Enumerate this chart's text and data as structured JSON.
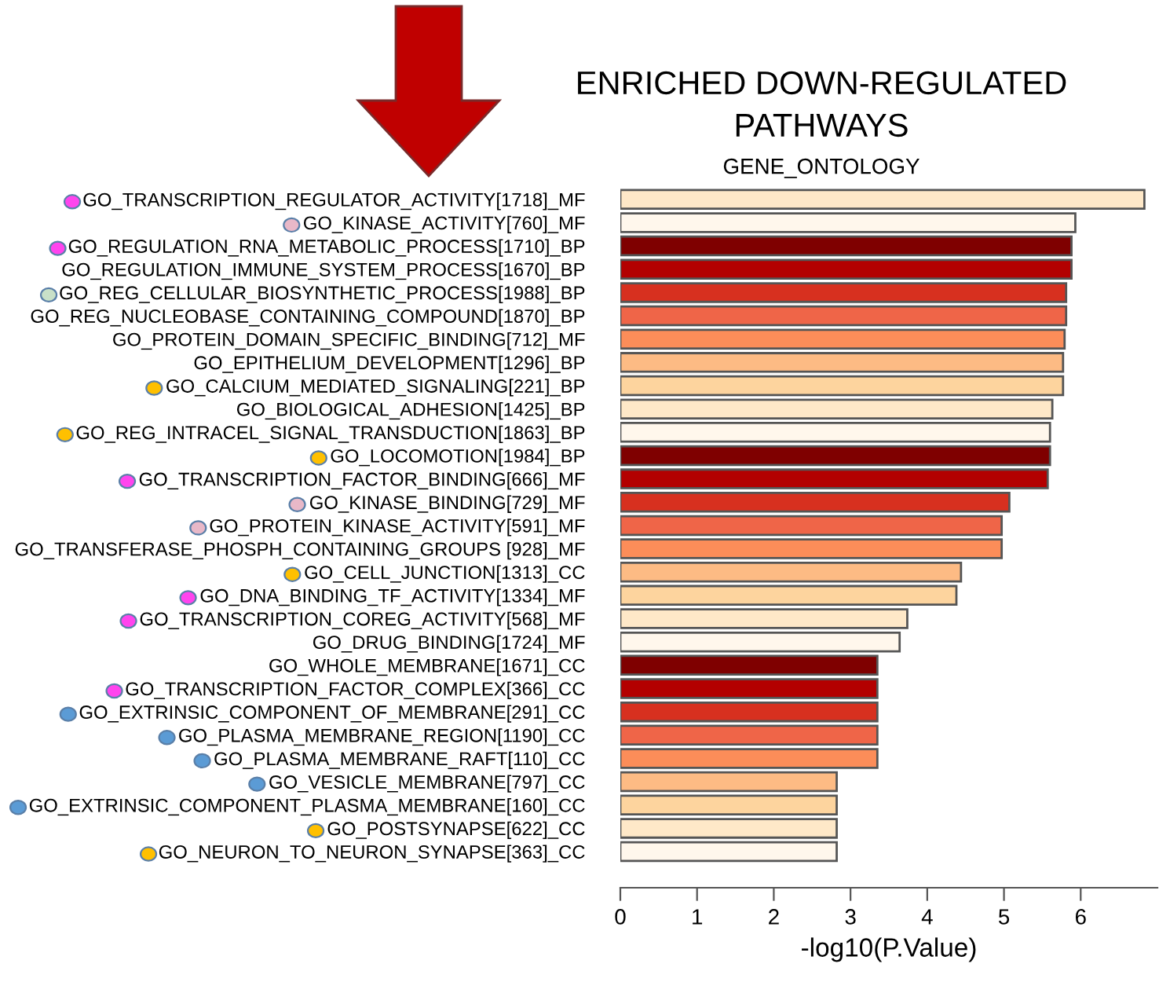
{
  "chart_data": {
    "type": "bar",
    "orientation": "horizontal",
    "title": "ENRICHED DOWN-REGULATED\nPATHWAYS",
    "subtitle": "GENE_ONTOLOGY",
    "xlabel": "-log10(P.Value)",
    "categories": [
      "GO_TRANSCRIPTION_REGULATOR_ACTIVITY[1718]_MF",
      "GO_KINASE_ACTIVITY[760]_MF",
      "GO_REGULATION_RNA_METABOLIC_PROCESS[1710]_BP",
      "GO_REGULATION_IMMUNE_SYSTEM_PROCESS[1670]_BP",
      "GO_REG_CELLULAR_BIOSYNTHETIC_PROCESS[1988]_BP",
      "GO_REG_NUCLEOBASE_CONTAINING_COMPOUND[1870]_BP",
      "GO_PROTEIN_DOMAIN_SPECIFIC_BINDING[712]_MF",
      "GO_EPITHELIUM_DEVELOPMENT[1296]_BP",
      "GO_CALCIUM_MEDIATED_SIGNALING[221]_BP",
      "GO_BIOLOGICAL_ADHESION[1425]_BP",
      "GO_REG_INTRACEL_SIGNAL_TRANSDUCTION[1863]_BP",
      "GO_LOCOMOTION[1984]_BP",
      "GO_TRANSCRIPTION_FACTOR_BINDING[666]_MF",
      "GO_KINASE_BINDING[729]_MF",
      "GO_PROTEIN_KINASE_ACTIVITY[591]_MF",
      "GO_TRANSFERASE_PHOSPH_CONTAINING_GROUPS [928]_MF",
      "GO_CELL_JUNCTION[1313]_CC",
      "GO_DNA_BINDING_TF_ACTIVITY[1334]_MF",
      "GO_TRANSCRIPTION_COREG_ACTIVITY[568]_MF",
      "GO_DRUG_BINDING[1724]_MF",
      "GO_WHOLE_MEMBRANE[1671]_CC",
      "GO_TRANSCRIPTION_FACTOR_COMPLEX[366]_CC",
      "GO_EXTRINSIC_COMPONENT_OF_MEMBRANE[291]_CC",
      "GO_PLASMA_MEMBRANE_REGION[1190]_CC",
      "GO_PLASMA_MEMBRANE_RAFT[110]_CC",
      "GO_VESICLE_MEMBRANE[797]_CC",
      "GO_EXTRINSIC_COMPONENT_PLASMA_MEMBRANE[160]_CC",
      "GO_POSTSYNAPSE[622]_CC",
      "GO_NEURON_TO_NEURON_SYNAPSE[363]_CC"
    ],
    "values": [
      6.83,
      5.93,
      5.88,
      5.88,
      5.81,
      5.81,
      5.79,
      5.77,
      5.77,
      5.63,
      5.6,
      5.6,
      5.57,
      5.07,
      4.97,
      4.97,
      4.44,
      4.38,
      3.74,
      3.64,
      3.35,
      3.35,
      3.35,
      3.35,
      3.35,
      2.82,
      2.82,
      2.82,
      2.82
    ],
    "colors": [
      "#fee8c8",
      "#fff7ec",
      "#7f0000",
      "#b30000",
      "#d7301f",
      "#ef6548",
      "#fc8d59",
      "#fdbb84",
      "#fdd49e",
      "#fee8c8",
      "#fff7ec",
      "#7f0000",
      "#b30000",
      "#d7301f",
      "#ef6548",
      "#fc8d59",
      "#fdbb84",
      "#fdd49e",
      "#fee8c8",
      "#fff7ec",
      "#7f0000",
      "#b30000",
      "#d7301f",
      "#ef6548",
      "#fc8d59",
      "#fdbb84",
      "#fdd49e",
      "#fee8c8",
      "#fff7ec"
    ],
    "xlim": [
      0,
      7
    ],
    "xticks": [
      0,
      1,
      2,
      3,
      4,
      5,
      6
    ],
    "grid": false,
    "legend": false
  }
}
